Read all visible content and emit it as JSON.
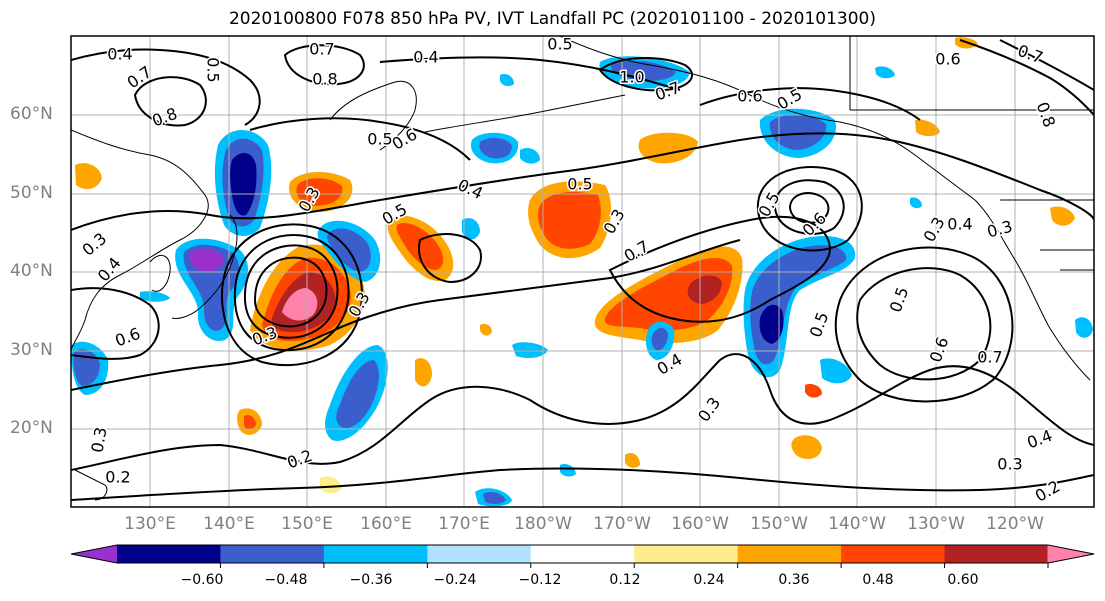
{
  "title": "2020100800 F078 850 hPa PV, IVT Landfall PC (2020101100 - 2020101300)",
  "lat_labels": [
    "60°N",
    "50°N",
    "40°N",
    "30°N",
    "20°N"
  ],
  "lon_labels": [
    "130°E",
    "140°E",
    "150°E",
    "160°E",
    "170°E",
    "180°W",
    "170°W",
    "160°W",
    "150°W",
    "140°W",
    "130°W",
    "120°W"
  ],
  "colorbar": {
    "ticks": [
      "−0.60",
      "−0.48",
      "−0.36",
      "−0.24",
      "−0.12",
      "0.12",
      "0.24",
      "0.36",
      "0.48",
      "0.60"
    ],
    "colors": [
      "#9932cc",
      "#00008b",
      "#3a5fcd",
      "#00bfff",
      "#b0e2ff",
      "#ffffff",
      "#ffec8b",
      "#ffa500",
      "#ff4500",
      "#b22222",
      "#ff82ab"
    ]
  },
  "contour_labels": [
    "0.4",
    "0.7",
    "0.4",
    "0.5",
    "0.8",
    "0.5",
    "0.7",
    "0.8",
    "1.0",
    "0.7",
    "0.6",
    "0.5",
    "0.6",
    "0.7",
    "0.8",
    "0.5",
    "0.6",
    "0.3",
    "0.5",
    "0.4",
    "0.3",
    "0.5",
    "0.3",
    "0.4",
    "0.5",
    "0.6",
    "0.7",
    "0.3",
    "0.3",
    "0.5",
    "0.6",
    "0.7",
    "0.4",
    "0.3",
    "0.3",
    "0.2",
    "0.4",
    "0.3",
    "0.2",
    "0.2",
    "0.3",
    "0.6",
    "0.4",
    "0.3",
    "0.5"
  ]
}
